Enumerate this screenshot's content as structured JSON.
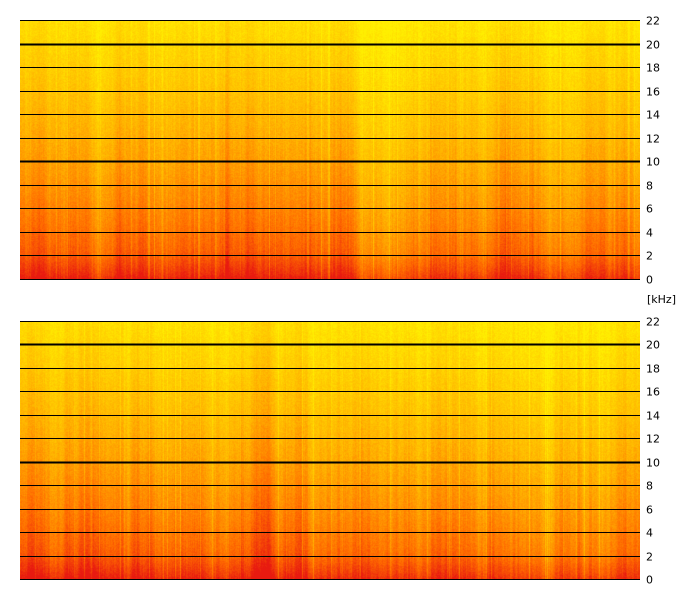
{
  "chart_data": [
    {
      "type": "heatmap",
      "title": "",
      "xlabel": "",
      "ylabel": "",
      "ylim": [
        0,
        22
      ],
      "y_ticks": [
        "0",
        "2",
        "4",
        "6",
        "8",
        "10",
        "12",
        "14",
        "16",
        "18",
        "20",
        "22"
      ],
      "y_major_lines": [
        10,
        20
      ],
      "grid": true,
      "colormap": [
        "#e81a10",
        "#ff6a00",
        "#ffb400",
        "#fff000"
      ]
    },
    {
      "type": "heatmap",
      "title": "",
      "xlabel": "",
      "ylabel": "",
      "ylim": [
        0,
        22
      ],
      "y_ticks": [
        "0",
        "2",
        "4",
        "6",
        "8",
        "10",
        "12",
        "14",
        "16",
        "18",
        "20",
        "22"
      ],
      "y_major_lines": [
        10,
        20
      ],
      "grid": true,
      "colormap": [
        "#e81a10",
        "#ff6a00",
        "#ffb400",
        "#fff000"
      ]
    }
  ],
  "axis_unit": "[kHz]"
}
